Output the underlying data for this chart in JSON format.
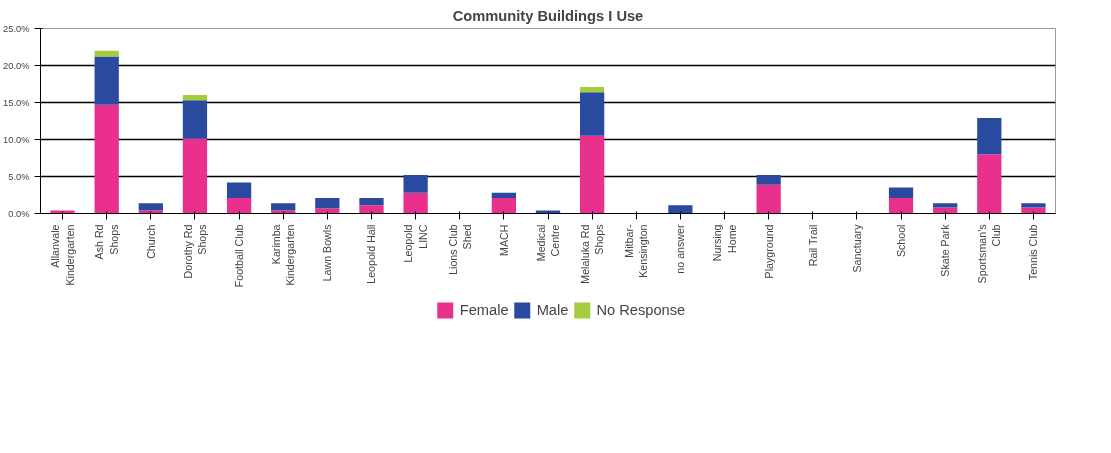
{
  "chart_data": {
    "type": "bar",
    "title": "Community Buildings I Use",
    "stacked": true,
    "categories": [
      "Allanvale\nKindergarten",
      "Ash Rd\nShops",
      "Church",
      "Dorothy Rd\nShops",
      "Football Club",
      "Karimba\nKindergarten",
      "Lawn Bowls",
      "Leopold Hall",
      "Leopold\nLINC",
      "Lions Club\nShed",
      "MACH",
      "Medical\nCentre",
      "Melaluka Rd\nShops",
      "Mitbar-\nKensington",
      "no answer",
      "Nursing\nHome",
      "Playground",
      "Rail Trail",
      "Sanctuary",
      "School",
      "Skate Park",
      "Sportsman's\nClub",
      "Tennis Club"
    ],
    "series": [
      {
        "name": "Female",
        "color": "#e8308c",
        "values": [
          0.4,
          14.7,
          0.4,
          10.1,
          2.1,
          0.4,
          0.7,
          1.1,
          2.8,
          0,
          2.1,
          0,
          10.5,
          0,
          0,
          0,
          3.9,
          0,
          0,
          2.1,
          0.8,
          8.0,
          0.8
        ]
      },
      {
        "name": "Male",
        "color": "#2a4a9f",
        "values": [
          0,
          6.5,
          1.0,
          5.2,
          2.1,
          1.0,
          1.4,
          1.0,
          2.4,
          0,
          0.7,
          0.4,
          5.9,
          0,
          1.1,
          0,
          1.3,
          0,
          0,
          1.4,
          0.6,
          4.9,
          0.6
        ]
      },
      {
        "name": "No Response",
        "color": "#a4cc3c",
        "values": [
          0,
          0.8,
          0,
          0.7,
          0,
          0,
          0,
          0,
          0,
          0,
          0,
          0,
          0.7,
          0,
          0,
          0,
          0,
          0,
          0,
          0,
          0,
          0,
          0
        ]
      }
    ],
    "ylim": [
      0,
      25
    ],
    "yticks": [
      {
        "value": 0,
        "label": "0.0%"
      },
      {
        "value": 5,
        "label": "5.0%"
      },
      {
        "value": 10,
        "label": "10.0%"
      },
      {
        "value": 15,
        "label": "15.0%"
      },
      {
        "value": 20,
        "label": "20.0%"
      },
      {
        "value": 25,
        "label": "25.0%"
      }
    ],
    "grid": "y",
    "legend": "bottom"
  }
}
